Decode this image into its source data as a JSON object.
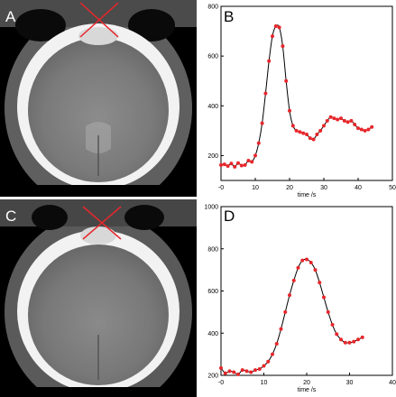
{
  "panels": {
    "a": {
      "letter": "A"
    },
    "b": {
      "letter": "B"
    },
    "c": {
      "letter": "C"
    },
    "d": {
      "letter": "D"
    }
  },
  "colors": {
    "curve": "#000000",
    "points": "#e8262b",
    "marker": "#e8262b",
    "ct_background": "#000000"
  },
  "chart_data": [
    {
      "type": "line",
      "panel": "B",
      "xlabel": "time /s",
      "ylabel": "",
      "xlim": [
        0,
        50
      ],
      "ylim": [
        100,
        800
      ],
      "x_ticks": [
        0,
        10,
        20,
        30,
        40,
        50
      ],
      "x_tick_labels": [
        "-0",
        "10",
        "20",
        "30",
        "40",
        "50"
      ],
      "y_ticks": [
        200,
        400,
        600,
        800
      ],
      "y_tick_labels": [
        "200",
        "400",
        "600",
        "800"
      ],
      "x": [
        0,
        1,
        2,
        3,
        4,
        5,
        6,
        7,
        8,
        9,
        10,
        11,
        12,
        13,
        14,
        15,
        16,
        17,
        18,
        19,
        20,
        21,
        22,
        23,
        24,
        25,
        26,
        27,
        28,
        29,
        30,
        31,
        32,
        33,
        34,
        35,
        36,
        37,
        38,
        39,
        40,
        41,
        42,
        43,
        44
      ],
      "y": [
        162,
        165,
        158,
        168,
        155,
        170,
        160,
        162,
        180,
        175,
        200,
        250,
        330,
        450,
        580,
        680,
        720,
        715,
        640,
        500,
        380,
        320,
        300,
        295,
        290,
        285,
        270,
        265,
        285,
        300,
        320,
        340,
        355,
        350,
        345,
        350,
        340,
        335,
        340,
        325,
        310,
        305,
        300,
        305,
        315
      ]
    },
    {
      "type": "line",
      "panel": "D",
      "xlabel": "time /s",
      "ylabel": "",
      "xlim": [
        0,
        40
      ],
      "ylim": [
        200,
        1000
      ],
      "x_ticks": [
        0,
        10,
        20,
        30,
        40
      ],
      "x_tick_labels": [
        "-0",
        "10",
        "20",
        "30",
        "40"
      ],
      "y_ticks": [
        200,
        400,
        600,
        800,
        1000
      ],
      "y_tick_labels": [
        "200",
        "400",
        "600",
        "800",
        "1000"
      ],
      "x": [
        0,
        1,
        2,
        3,
        4,
        5,
        6,
        7,
        8,
        9,
        10,
        11,
        12,
        13,
        14,
        15,
        16,
        17,
        18,
        19,
        20,
        21,
        22,
        23,
        24,
        25,
        26,
        27,
        28,
        29,
        30,
        31,
        32,
        33
      ],
      "y": [
        235,
        210,
        220,
        215,
        205,
        225,
        220,
        215,
        225,
        230,
        245,
        265,
        300,
        350,
        420,
        500,
        580,
        650,
        710,
        745,
        750,
        735,
        700,
        640,
        570,
        500,
        440,
        395,
        370,
        355,
        355,
        360,
        370,
        380
      ]
    }
  ]
}
